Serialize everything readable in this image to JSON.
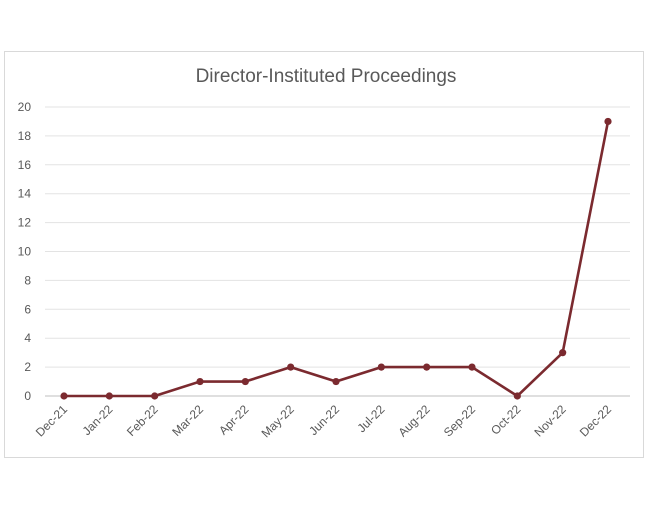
{
  "chart_data": {
    "type": "line",
    "title": "Director-Instituted Proceedings",
    "categories": [
      "Dec-21",
      "Jan-22",
      "Feb-22",
      "Mar-22",
      "Apr-22",
      "May-22",
      "Jun-22",
      "Jul-22",
      "Aug-22",
      "Sep-22",
      "Oct-22",
      "Nov-22",
      "Dec-22"
    ],
    "series": [
      {
        "values": [
          0,
          0,
          0,
          1,
          1,
          2,
          1,
          2,
          2,
          2,
          0,
          3,
          19
        ]
      }
    ],
    "xlabel": "",
    "ylabel": "",
    "ylim": [
      0,
      20
    ],
    "yticks": [
      "0",
      "2",
      "4",
      "6",
      "8",
      "10",
      "12",
      "14",
      "16",
      "18",
      "20"
    ],
    "grid": true,
    "legend": "none",
    "colors": {
      "line": "#7b2a2f",
      "grid": "#e3e3e3",
      "text": "#595959"
    }
  }
}
